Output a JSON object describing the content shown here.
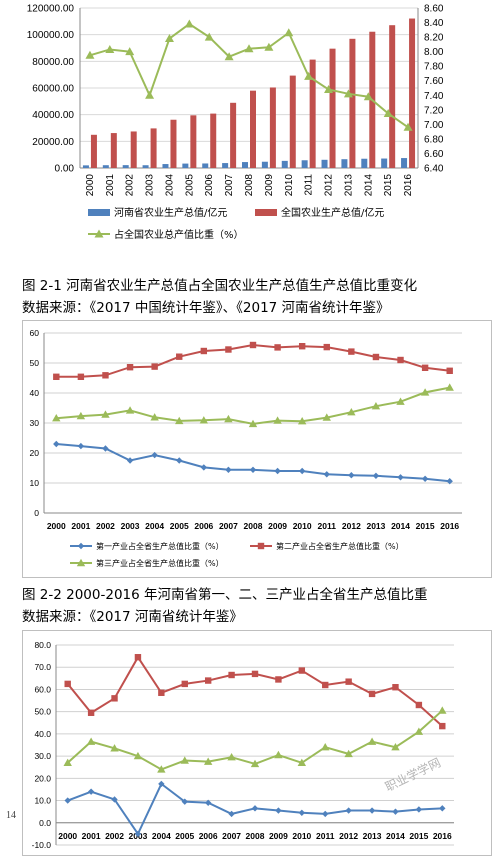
{
  "page_number": "14",
  "watermark_text": "职业学学网",
  "captions": {
    "fig1_title": "图 2-1 河南省农业生产总值占全国农业生产总值生产总值比重变化",
    "fig1_source": "数据来源：《2017 中国统计年鉴》、《2017 河南省统计年鉴》",
    "fig2_title": "图 2-2 2000-2016 年河南省第一、二、三产业占全省生产总值比重",
    "fig2_source": "数据来源：《2017 河南省统计年鉴》"
  },
  "chart_data": [
    {
      "type": "bar",
      "categories": [
        "2000",
        "2001",
        "2002",
        "2003",
        "2004",
        "2005",
        "2006",
        "2007",
        "2008",
        "2009",
        "2010",
        "2011",
        "2012",
        "2013",
        "2014",
        "2015",
        "2016"
      ],
      "ylim": [
        0,
        120000
      ],
      "yticks": [
        "0.00",
        "20000.00",
        "40000.00",
        "60000.00",
        "80000.00",
        "100000.00",
        "120000.00"
      ],
      "y2lim": [
        6.4,
        8.6
      ],
      "y2ticks": [
        "6.40",
        "6.60",
        "6.80",
        "7.00",
        "7.20",
        "7.40",
        "7.60",
        "7.80",
        "8.00",
        "8.20",
        "8.40",
        "8.60"
      ],
      "series": [
        {
          "name": "河南省农业生产总值/亿元",
          "type": "bar",
          "color": "#4f81bd",
          "values": [
            1980,
            2100,
            2150,
            2080,
            2960,
            3310,
            3400,
            3700,
            4450,
            4700,
            5350,
            5800,
            6150,
            6600,
            6950,
            7100,
            7450
          ]
        },
        {
          "name": "全国农业生产总值/亿元",
          "type": "bar",
          "color": "#c0504d",
          "values": [
            24900,
            26200,
            27400,
            29700,
            36200,
            39500,
            40800,
            48900,
            58000,
            60400,
            69300,
            81300,
            89500,
            96900,
            102200,
            107100,
            112100
          ]
        },
        {
          "name": "占全国农业总产值比重（%）",
          "type": "line",
          "axis": "right",
          "color": "#9bbb59",
          "values": [
            7.95,
            8.03,
            8.0,
            7.4,
            8.18,
            8.38,
            8.2,
            7.93,
            8.04,
            8.06,
            8.26,
            7.66,
            7.48,
            7.42,
            7.38,
            7.15,
            6.96
          ]
        }
      ],
      "legend_position": "bottom"
    },
    {
      "type": "line",
      "categories": [
        "2000",
        "2001",
        "2002",
        "2003",
        "2004",
        "2005",
        "2006",
        "2007",
        "2008",
        "2009",
        "2010",
        "2011",
        "2012",
        "2013",
        "2014",
        "2015",
        "2016"
      ],
      "ylim": [
        0,
        60
      ],
      "yticks": [
        "0",
        "10",
        "20",
        "30",
        "40",
        "50",
        "60"
      ],
      "series": [
        {
          "name": "第一产业占全省生产总值比重（%）",
          "color": "#4f81bd",
          "marker": "diamond",
          "values": [
            23.0,
            22.3,
            21.5,
            17.5,
            19.3,
            17.5,
            15.2,
            14.4,
            14.4,
            14.0,
            14.0,
            12.9,
            12.6,
            12.4,
            11.9,
            11.4,
            10.6
          ]
        },
        {
          "name": "第二产业占全省生产总值比重（%）",
          "color": "#c0504d",
          "marker": "square",
          "values": [
            45.4,
            45.4,
            45.9,
            48.6,
            48.8,
            52.1,
            54.0,
            54.5,
            56.0,
            55.2,
            55.6,
            55.3,
            53.8,
            52.0,
            51.0,
            48.4,
            47.4
          ]
        },
        {
          "name": "第三产业占全省生产总值比重（%）",
          "color": "#9bbb59",
          "marker": "triangle",
          "values": [
            31.6,
            32.3,
            32.8,
            34.2,
            31.9,
            30.7,
            30.9,
            31.3,
            29.7,
            30.8,
            30.6,
            31.8,
            33.6,
            35.6,
            37.1,
            40.2,
            41.8
          ]
        }
      ],
      "legend_position": "bottom"
    },
    {
      "type": "line",
      "categories": [
        "2000",
        "2001",
        "2002",
        "2003",
        "2004",
        "2005",
        "2006",
        "2007",
        "2008",
        "2009",
        "2010",
        "2011",
        "2012",
        "2013",
        "2014",
        "2015",
        "2016"
      ],
      "ylim": [
        -10,
        80
      ],
      "yticks": [
        "-10.0",
        "0.0",
        "10.0",
        "20.0",
        "30.0",
        "40.0",
        "50.0",
        "60.0",
        "70.0",
        "80.0"
      ],
      "series": [
        {
          "color": "#c0504d",
          "marker": "square",
          "values": [
            62.5,
            49.5,
            56.0,
            74.5,
            58.5,
            62.5,
            64.0,
            66.5,
            67.0,
            64.5,
            68.5,
            62.0,
            63.5,
            58.0,
            61.0,
            53.0,
            43.5
          ]
        },
        {
          "color": "#9bbb59",
          "marker": "triangle",
          "values": [
            27.0,
            36.5,
            33.5,
            30.0,
            24.0,
            28.0,
            27.5,
            29.5,
            26.5,
            30.5,
            27.0,
            34.0,
            31.0,
            36.5,
            34.0,
            41.0,
            50.5
          ]
        },
        {
          "color": "#4f81bd",
          "marker": "diamond",
          "values": [
            10.0,
            14.0,
            10.5,
            -5.0,
            17.5,
            9.5,
            9.0,
            4.0,
            6.5,
            5.5,
            4.5,
            4.0,
            5.5,
            5.5,
            5.0,
            6.0,
            6.5
          ]
        }
      ]
    }
  ]
}
